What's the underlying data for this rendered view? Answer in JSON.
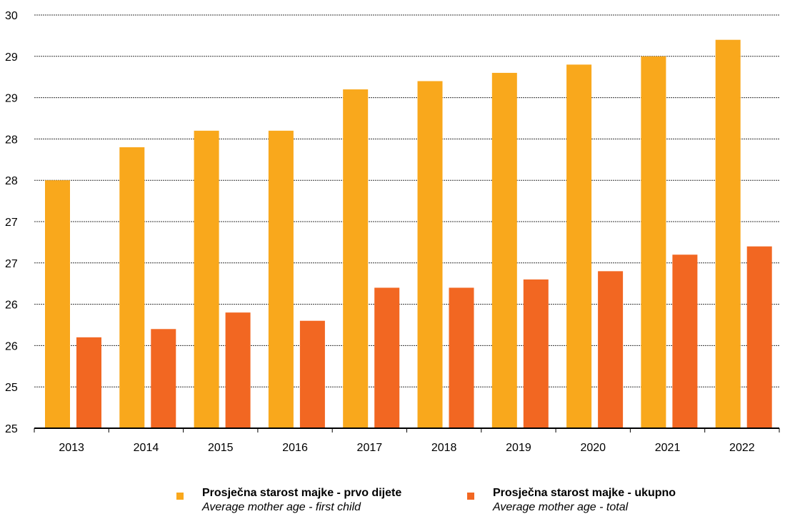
{
  "chart_data": {
    "type": "bar",
    "categories": [
      "2013",
      "2014",
      "2015",
      "2016",
      "2017",
      "2018",
      "2019",
      "2020",
      "2021",
      "2022"
    ],
    "series": [
      {
        "name": "Prosječna starost majke - prvo dijete",
        "name_en": "Average mother age - first child",
        "color": "#F9A81C",
        "values": [
          28.0,
          28.4,
          28.6,
          28.6,
          29.1,
          29.2,
          29.3,
          29.4,
          29.5,
          29.7
        ]
      },
      {
        "name": "Prosječna starost majke - ukupno",
        "name_en": "Average mother age - total",
        "color": "#F26722",
        "values": [
          26.1,
          26.2,
          26.4,
          26.3,
          26.7,
          26.7,
          26.8,
          26.9,
          27.1,
          27.2
        ]
      }
    ],
    "y_ticks": [
      "25",
      "25",
      "26",
      "26",
      "27",
      "27",
      "28",
      "28",
      "29",
      "29",
      "30"
    ],
    "ylim": [
      25,
      30
    ],
    "grid": true,
    "title": "",
    "xlabel": "",
    "ylabel": "",
    "legend_position": "bottom"
  }
}
